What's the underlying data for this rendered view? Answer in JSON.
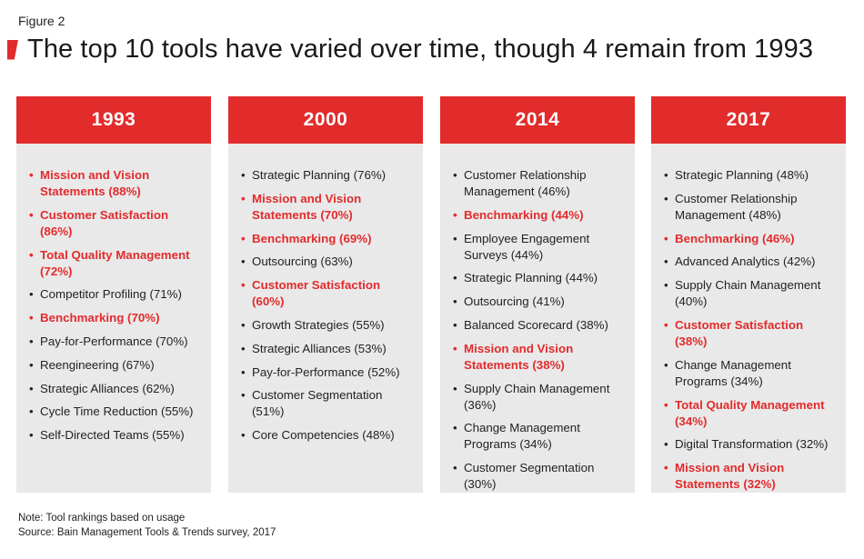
{
  "figure_label": "Figure 2",
  "title": "The top 10 tools have varied over time, though 4 remain from 1993",
  "colors": {
    "accent": "#e22b2b",
    "panel_bg": "#e9e9ea",
    "text": "#222222"
  },
  "chart_data": {
    "type": "table",
    "title": "The top 10 tools have varied over time, though 4 remain from 1993",
    "columns": [
      {
        "year": "1993",
        "items": [
          {
            "text": "Mission and Vision Statements (88%)",
            "highlight": true
          },
          {
            "text": "Customer Satisfaction (86%)",
            "highlight": true
          },
          {
            "text": "Total Quality Management (72%)",
            "highlight": true
          },
          {
            "text": "Competitor Profiling (71%)",
            "highlight": false
          },
          {
            "text": "Benchmarking (70%)",
            "highlight": true
          },
          {
            "text": "Pay-for-Performance (70%)",
            "highlight": false
          },
          {
            "text": "Reengineering (67%)",
            "highlight": false
          },
          {
            "text": "Strategic Alliances (62%)",
            "highlight": false
          },
          {
            "text": "Cycle Time Reduction (55%)",
            "highlight": false
          },
          {
            "text": "Self-Directed Teams (55%)",
            "highlight": false
          }
        ]
      },
      {
        "year": "2000",
        "items": [
          {
            "text": "Strategic Planning (76%)",
            "highlight": false
          },
          {
            "text": "Mission and Vision Statements (70%)",
            "highlight": true
          },
          {
            "text": "Benchmarking (69%)",
            "highlight": true
          },
          {
            "text": "Outsourcing (63%)",
            "highlight": false
          },
          {
            "text": "Customer Satisfaction (60%)",
            "highlight": true
          },
          {
            "text": "Growth Strategies (55%)",
            "highlight": false
          },
          {
            "text": "Strategic Alliances (53%)",
            "highlight": false
          },
          {
            "text": "Pay-for-Performance (52%)",
            "highlight": false
          },
          {
            "text": "Customer Segmentation (51%)",
            "highlight": false
          },
          {
            "text": "Core Competencies (48%)",
            "highlight": false
          }
        ]
      },
      {
        "year": "2014",
        "items": [
          {
            "text": "Customer Relationship Management (46%)",
            "highlight": false
          },
          {
            "text": "Benchmarking (44%)",
            "highlight": true
          },
          {
            "text": "Employee Engagement Surveys (44%)",
            "highlight": false
          },
          {
            "text": "Strategic Planning (44%)",
            "highlight": false
          },
          {
            "text": "Outsourcing (41%)",
            "highlight": false
          },
          {
            "text": "Balanced Scorecard (38%)",
            "highlight": false
          },
          {
            "text": "Mission and Vision Statements (38%)",
            "highlight": true
          },
          {
            "text": "Supply Chain Management (36%)",
            "highlight": false
          },
          {
            "text": "Change Management Programs (34%)",
            "highlight": false
          },
          {
            "text": "Customer Segmentation (30%)",
            "highlight": false
          }
        ]
      },
      {
        "year": "2017",
        "items": [
          {
            "text": "Strategic Planning (48%)",
            "highlight": false
          },
          {
            "text": "Customer Relationship Management (48%)",
            "highlight": false
          },
          {
            "text": "Benchmarking (46%)",
            "highlight": true
          },
          {
            "text": "Advanced Analytics (42%)",
            "highlight": false
          },
          {
            "text": "Supply Chain Management (40%)",
            "highlight": false
          },
          {
            "text": "Customer Satisfaction (38%)",
            "highlight": true
          },
          {
            "text": "Change Management Programs (34%)",
            "highlight": false
          },
          {
            "text": "Total Quality Management (34%)",
            "highlight": true
          },
          {
            "text": "Digital Transformation (32%)",
            "highlight": false
          },
          {
            "text": "Mission and Vision Statements (32%)",
            "highlight": true
          }
        ]
      }
    ]
  },
  "notes": {
    "note": "Note: Tool rankings based on usage",
    "source": "Source: Bain Management Tools & Trends survey, 2017"
  }
}
